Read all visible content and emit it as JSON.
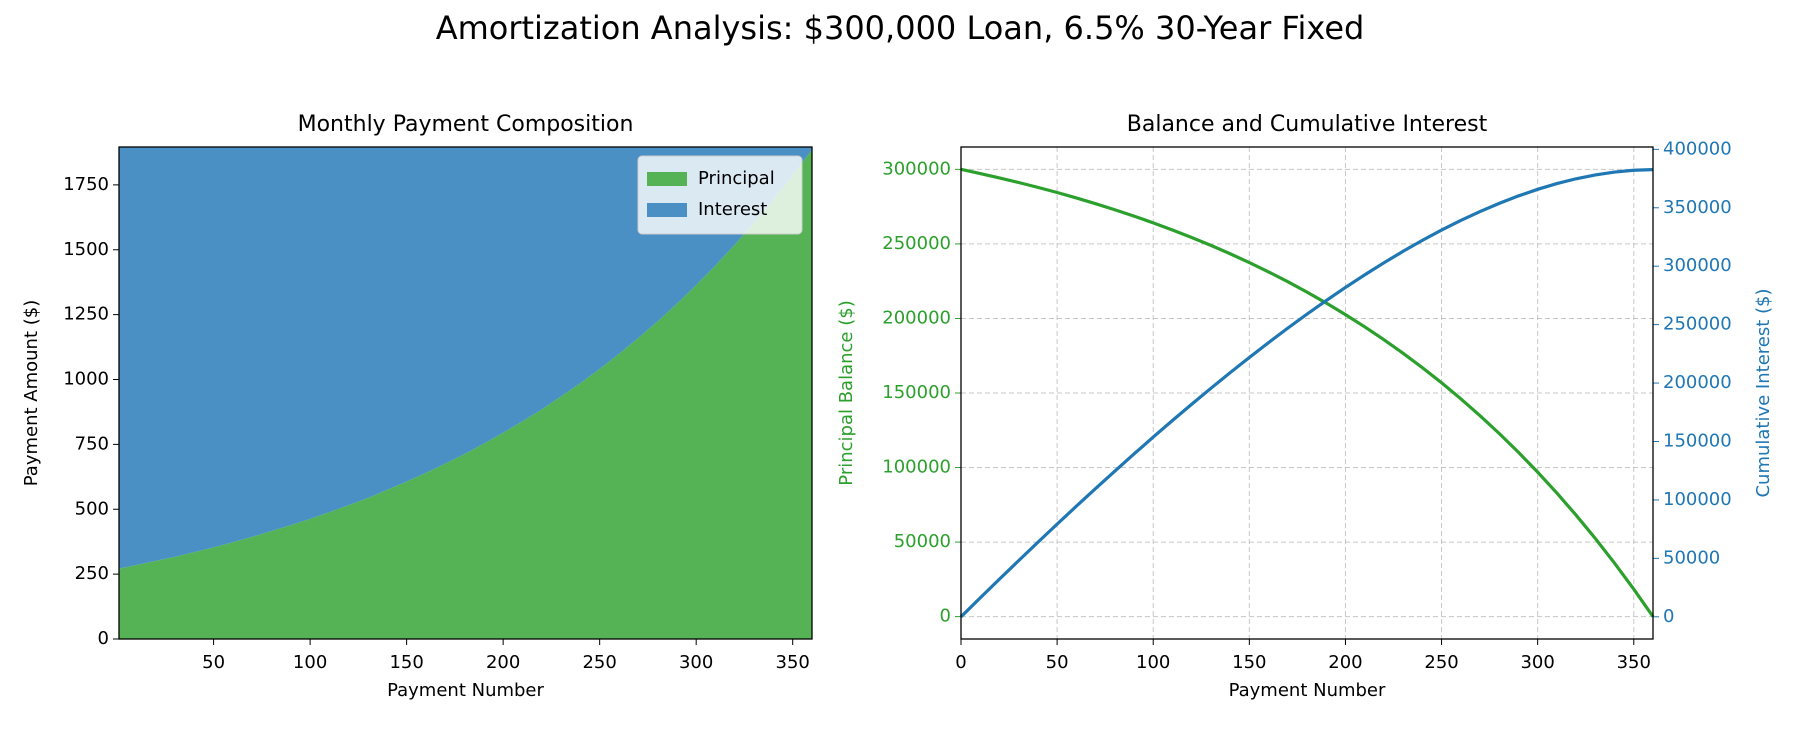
{
  "title": "Amortization Analysis: $300,000 Loan, 6.5% 30-Year Fixed",
  "chart_data": [
    {
      "type": "area",
      "stacked": true,
      "title": "Monthly Payment Composition",
      "xlabel": "Payment Number",
      "ylabel": "Payment Amount ($)",
      "x": [
        1,
        10,
        20,
        30,
        40,
        50,
        60,
        70,
        80,
        90,
        100,
        110,
        120,
        130,
        140,
        150,
        160,
        170,
        180,
        190,
        200,
        210,
        220,
        230,
        240,
        250,
        260,
        270,
        280,
        290,
        300,
        310,
        320,
        330,
        340,
        350,
        360
      ],
      "series": [
        {
          "name": "Principal",
          "color": "#55b255",
          "values": [
            271,
            285,
            301,
            317,
            335,
            353,
            373,
            394,
            416,
            439,
            463,
            489,
            516,
            544,
            575,
            607,
            640,
            676,
            713,
            753,
            795,
            839,
            885,
            935,
            986,
            1041,
            1099,
            1160,
            1224,
            1292,
            1364,
            1440,
            1520,
            1604,
            1693,
            1787,
            1886
          ]
        },
        {
          "name": "Interest",
          "color": "#4a90c4",
          "values": [
            1625,
            1612,
            1596,
            1579,
            1561,
            1543,
            1523,
            1503,
            1481,
            1458,
            1433,
            1408,
            1380,
            1352,
            1322,
            1290,
            1256,
            1221,
            1183,
            1143,
            1102,
            1057,
            1011,
            962,
            910,
            855,
            797,
            736,
            672,
            604,
            532,
            457,
            377,
            292,
            203,
            109,
            10
          ]
        }
      ],
      "xlim": [
        1,
        360
      ],
      "ylim": [
        0,
        1896
      ],
      "xticks": [
        50,
        100,
        150,
        200,
        250,
        300,
        350
      ],
      "yticks": [
        0,
        250,
        500,
        750,
        1000,
        1250,
        1500,
        1750
      ],
      "grid": true,
      "legend": "upper right"
    },
    {
      "type": "line",
      "title": "Balance and Cumulative Interest",
      "xlabel": "Payment Number",
      "ylabel": "Principal Balance ($)",
      "y2label": "Cumulative Interest ($)",
      "x": [
        0,
        10,
        20,
        30,
        40,
        50,
        60,
        70,
        80,
        90,
        100,
        110,
        120,
        130,
        140,
        150,
        160,
        170,
        180,
        190,
        200,
        210,
        220,
        230,
        240,
        250,
        260,
        270,
        280,
        290,
        300,
        310,
        320,
        330,
        340,
        350,
        360
      ],
      "series": [
        {
          "color": "#2ca02c",
          "axis": "y",
          "values": [
            300000,
            297220,
            294288,
            291191,
            287924,
            284474,
            280835,
            276991,
            272935,
            268654,
            264135,
            259366,
            254331,
            249017,
            243408,
            237488,
            231239,
            224643,
            217681,
            210333,
            202577,
            194391,
            185750,
            176630,
            167002,
            156842,
            146116,
            134796,
            122849,
            110235,
            96923,
            82872,
            68041,
            52386,
            35863,
            18423,
            0
          ]
        },
        {
          "color": "#1f77b4",
          "axis": "y2",
          "values": [
            0,
            16182,
            32212,
            48077,
            63772,
            79284,
            94607,
            109725,
            124631,
            139312,
            153755,
            167948,
            181875,
            195523,
            208876,
            221918,
            234631,
            246997,
            258997,
            270611,
            281817,
            292593,
            302914,
            312756,
            322090,
            330892,
            339128,
            346770,
            353785,
            360133,
            365783,
            370694,
            374825,
            378132,
            380571,
            382093,
            382632
          ]
        }
      ],
      "xlim": [
        0,
        360
      ],
      "ylim": [
        -15000,
        315000
      ],
      "y2lim": [
        -19000,
        402000
      ],
      "xticks": [
        0,
        50,
        100,
        150,
        200,
        250,
        300,
        350
      ],
      "yticks": [
        0,
        50000,
        100000,
        150000,
        200000,
        250000,
        300000
      ],
      "y2ticks": [
        0,
        50000,
        100000,
        150000,
        200000,
        250000,
        300000,
        350000,
        400000
      ],
      "grid": true
    }
  ]
}
